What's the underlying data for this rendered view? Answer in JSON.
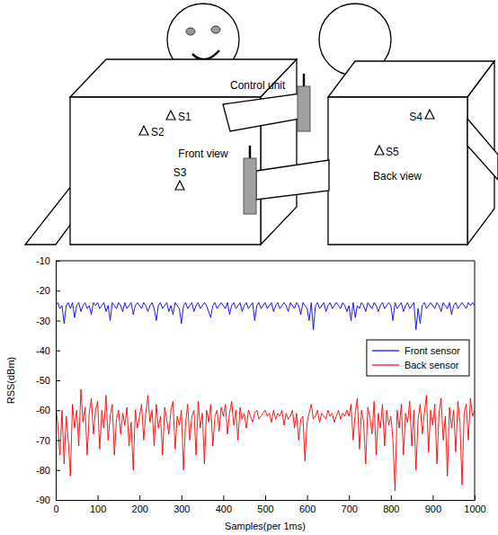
{
  "diagram": {
    "control_unit": "Control unit",
    "front_figure": {
      "view": "Front view",
      "sensors": [
        "S1",
        "S2",
        "S3"
      ]
    },
    "back_figure": {
      "view": "Back view",
      "sensors": [
        "S4",
        "S5"
      ]
    }
  },
  "chart_data": {
    "type": "line",
    "x_label": "Samples(per 1ms)",
    "y_label": "RSS(dBm)",
    "xlim": [
      0,
      1000
    ],
    "xticks": [
      0,
      100,
      200,
      300,
      400,
      500,
      600,
      700,
      800,
      900,
      1000
    ],
    "ylim": [
      -90,
      -10
    ],
    "yticks": [
      -90,
      -80,
      -70,
      -60,
      -50,
      -40,
      -30,
      -20,
      -10
    ],
    "legend": "right",
    "x": [
      0,
      5,
      10,
      15,
      20,
      25,
      30,
      35,
      40,
      45,
      50,
      55,
      60,
      65,
      70,
      75,
      80,
      85,
      90,
      95,
      100,
      105,
      110,
      115,
      120,
      125,
      130,
      135,
      140,
      145,
      150,
      155,
      160,
      165,
      170,
      175,
      180,
      185,
      190,
      195,
      200,
      205,
      210,
      215,
      220,
      225,
      230,
      235,
      240,
      245,
      250,
      255,
      260,
      265,
      270,
      275,
      280,
      285,
      290,
      295,
      300,
      305,
      310,
      315,
      320,
      325,
      330,
      335,
      340,
      345,
      350,
      355,
      360,
      365,
      370,
      375,
      380,
      385,
      390,
      395,
      400,
      405,
      410,
      415,
      420,
      425,
      430,
      435,
      440,
      445,
      450,
      455,
      460,
      465,
      470,
      475,
      480,
      485,
      490,
      495,
      500,
      505,
      510,
      515,
      520,
      525,
      530,
      535,
      540,
      545,
      550,
      555,
      560,
      565,
      570,
      575,
      580,
      585,
      590,
      595,
      600,
      605,
      610,
      615,
      620,
      625,
      630,
      635,
      640,
      645,
      650,
      655,
      660,
      665,
      670,
      675,
      680,
      685,
      690,
      695,
      700,
      705,
      710,
      715,
      720,
      725,
      730,
      735,
      740,
      745,
      750,
      755,
      760,
      765,
      770,
      775,
      780,
      785,
      790,
      795,
      800,
      805,
      810,
      815,
      820,
      825,
      830,
      835,
      840,
      845,
      850,
      855,
      860,
      865,
      870,
      875,
      880,
      885,
      890,
      895,
      900,
      905,
      910,
      915,
      920,
      925,
      930,
      935,
      940,
      945,
      950,
      955,
      960,
      965,
      970,
      975,
      980,
      985,
      990,
      995,
      1000
    ],
    "series": [
      {
        "name": "Front sensor",
        "color": "#0000ff",
        "values": [
          -25,
          -24,
          -26,
          -25,
          -31,
          -25,
          -24,
          -26,
          -24,
          -29,
          -25,
          -24,
          -27,
          -25,
          -24,
          -26,
          -25,
          -28,
          -24,
          -25,
          -24,
          -26,
          -25,
          -24,
          -27,
          -25,
          -30,
          -24,
          -25,
          -26,
          -24,
          -25,
          -27,
          -24,
          -26,
          -25,
          -24,
          -28,
          -25,
          -24,
          -25,
          -26,
          -24,
          -25,
          -27,
          -25,
          -24,
          -26,
          -30,
          -25,
          -24,
          -26,
          -25,
          -24,
          -27,
          -25,
          -28,
          -24,
          -25,
          -26,
          -31,
          -25,
          -24,
          -26,
          -25,
          -24,
          -27,
          -25,
          -24,
          -26,
          -25,
          -24,
          -25,
          -27,
          -29,
          -25,
          -24,
          -26,
          -25,
          -24,
          -25,
          -26,
          -24,
          -28,
          -25,
          -24,
          -26,
          -25,
          -24,
          -27,
          -25,
          -24,
          -26,
          -25,
          -24,
          -30,
          -25,
          -24,
          -26,
          -25,
          -24,
          -26,
          -25,
          -24,
          -27,
          -25,
          -24,
          -26,
          -25,
          -24,
          -25,
          -27,
          -24,
          -25,
          -26,
          -24,
          -25,
          -28,
          -24,
          -25,
          -26,
          -30,
          -24,
          -33,
          -25,
          -24,
          -26,
          -25,
          -24,
          -27,
          -25,
          -24,
          -26,
          -25,
          -24,
          -25,
          -26,
          -24,
          -25,
          -27,
          -25,
          -30,
          -24,
          -29,
          -25,
          -26,
          -24,
          -25,
          -27,
          -24,
          -25,
          -26,
          -24,
          -25,
          -27,
          -25,
          -24,
          -26,
          -25,
          -24,
          -25,
          -30,
          -24,
          -26,
          -25,
          -24,
          -27,
          -25,
          -24,
          -26,
          -25,
          -24,
          -33,
          -26,
          -31,
          -25,
          -24,
          -26,
          -25,
          -24,
          -25,
          -26,
          -24,
          -25,
          -27,
          -24,
          -25,
          -26,
          -24,
          -28,
          -25,
          -24,
          -26,
          -25,
          -24,
          -25,
          -26,
          -24,
          -25,
          -24,
          -25
        ]
      },
      {
        "name": "Back sensor",
        "color": "#ff0000",
        "values": [
          -58,
          -65,
          -75,
          -60,
          -78,
          -62,
          -70,
          -82,
          -58,
          -66,
          -60,
          -72,
          -53,
          -64,
          -59,
          -75,
          -61,
          -56,
          -68,
          -60,
          -57,
          -73,
          -60,
          -66,
          -55,
          -70,
          -62,
          -58,
          -75,
          -63,
          -60,
          -68,
          -61,
          -65,
          -59,
          -72,
          -64,
          -80,
          -60,
          -66,
          -62,
          -58,
          -70,
          -61,
          -55,
          -64,
          -60,
          -72,
          -58,
          -66,
          -62,
          -75,
          -59,
          -63,
          -68,
          -60,
          -57,
          -73,
          -62,
          -65,
          -60,
          -80,
          -64,
          -58,
          -70,
          -62,
          -60,
          -75,
          -57,
          -66,
          -61,
          -78,
          -60,
          -64,
          -58,
          -72,
          -62,
          -60,
          -67,
          -59,
          -62,
          -58,
          -68,
          -61,
          -57,
          -65,
          -60,
          -70,
          -59,
          -63,
          -61,
          -66,
          -60,
          -62,
          -64,
          -61,
          -60,
          -63,
          -62,
          -61,
          -60,
          -62,
          -61,
          -64,
          -60,
          -63,
          -61,
          -62,
          -60,
          -65,
          -61,
          -63,
          -62,
          -60,
          -66,
          -61,
          -70,
          -63,
          -62,
          -77,
          -64,
          -61,
          -58,
          -63,
          -62,
          -60,
          -64,
          -61,
          -62,
          -63,
          -60,
          -62,
          -61,
          -64,
          -62,
          -60,
          -63,
          -61,
          -62,
          -60,
          -62,
          -58,
          -70,
          -61,
          -56,
          -73,
          -60,
          -64,
          -78,
          -59,
          -62,
          -68,
          -57,
          -75,
          -61,
          -66,
          -58,
          -72,
          -60,
          -65,
          -62,
          -70,
          -87,
          -60,
          -66,
          -58,
          -75,
          -61,
          -64,
          -57,
          -72,
          -60,
          -80,
          -63,
          -58,
          -68,
          -61,
          -55,
          -74,
          -60,
          -65,
          -58,
          -78,
          -61,
          -56,
          -70,
          -62,
          -82,
          -59,
          -66,
          -60,
          -74,
          -57,
          -64,
          -85,
          -61,
          -58,
          -70,
          -56,
          -62,
          -60
        ]
      }
    ]
  }
}
